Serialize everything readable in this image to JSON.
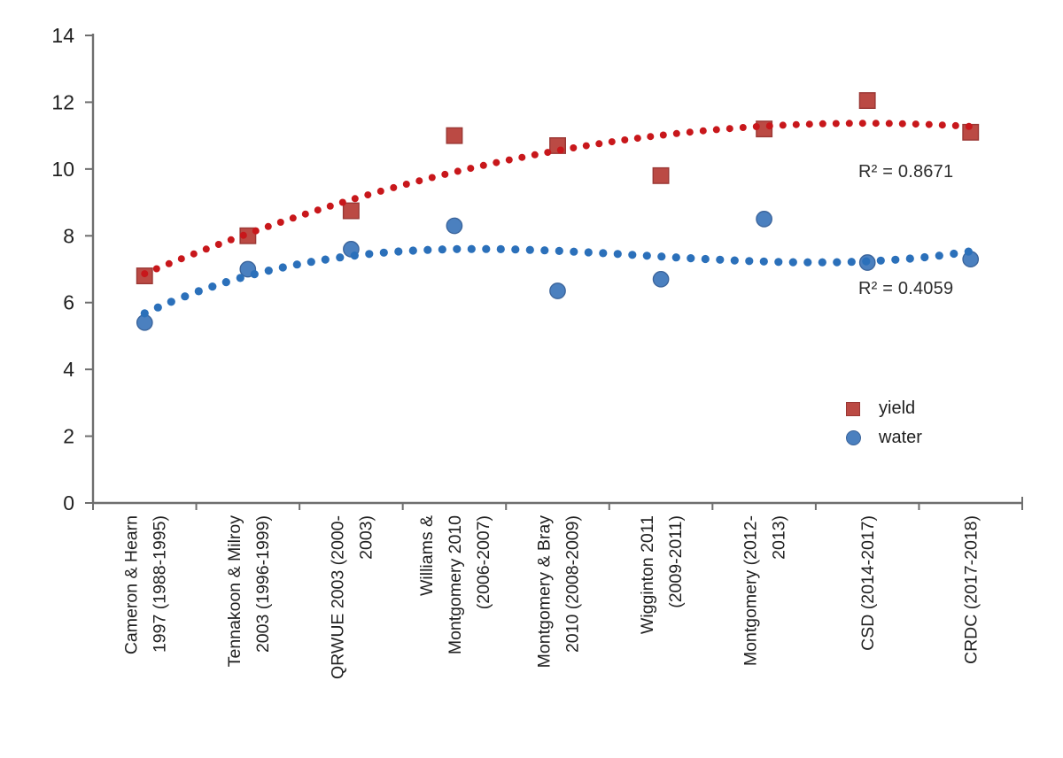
{
  "chart_data": {
    "type": "scatter",
    "title": "",
    "xlabel": "",
    "ylabel": "",
    "ylim": [
      0,
      14
    ],
    "yticks": [
      0,
      2,
      4,
      6,
      8,
      10,
      12,
      14
    ],
    "grid": false,
    "legend_position": "right-middle",
    "categories": [
      "Cameron & Hearn 1997 (1988-1995)",
      "Tennakoon & Milroy 2003 (1996-1999)",
      "QRWUE 2003 (2000-2003)",
      "Williams & Montgomery 2010 (2006-2007)",
      "Montgomery & Bray 2010 (2008-2009)",
      "Wigginton 2011 (2009-2011)",
      "Montgomery (2012-2013)",
      "CSD (2014-2017)",
      "CRDC (2017-2018)"
    ],
    "category_label_lines": [
      [
        "Cameron & Hearn",
        "1997 (1988-1995)"
      ],
      [
        "Tennakoon & Milroy",
        "2003 (1996-1999)"
      ],
      [
        "QRWUE 2003 (2000-",
        "2003)"
      ],
      [
        "Williams &",
        "Montgomery 2010",
        "(2006-2007)"
      ],
      [
        "Montgomery & Bray",
        "2010 (2008-2009)"
      ],
      [
        "Wigginton 2011",
        "(2009-2011)"
      ],
      [
        "Montgomery (2012-",
        "2013)"
      ],
      [
        "CSD (2014-2017)"
      ],
      [
        "CRDC (2017-2018)"
      ]
    ],
    "series": [
      {
        "name": "yield",
        "marker": "square",
        "color": "#bb4a44",
        "border_color": "#9a3734",
        "values": [
          6.8,
          8.0,
          8.75,
          11.0,
          10.7,
          9.8,
          11.2,
          12.05,
          11.1
        ],
        "trendline": {
          "type": "polynomial",
          "order": 2,
          "coefficients": [
            5.481,
            1.4772,
            -0.09264
          ],
          "style": "dotted",
          "color": "#c8171b",
          "r_squared": 0.8671,
          "r_squared_label": "R² = 0.8671"
        }
      },
      {
        "name": "water",
        "marker": "circle",
        "color": "#4b80bf",
        "border_color": "#3a639a",
        "values": [
          5.4,
          7.0,
          7.6,
          8.3,
          6.35,
          6.7,
          8.5,
          7.2,
          7.3
        ],
        "trendline": {
          "type": "polynomial",
          "order": 3,
          "coefficients": [
            3.8848,
            2.1696,
            -0.40164,
            0.022852
          ],
          "style": "dotted",
          "color": "#2b70ba",
          "r_squared": 0.4059,
          "r_squared_label": "R² = 0.4059"
        }
      }
    ],
    "legend": {
      "items": [
        "yield",
        "water"
      ]
    }
  }
}
